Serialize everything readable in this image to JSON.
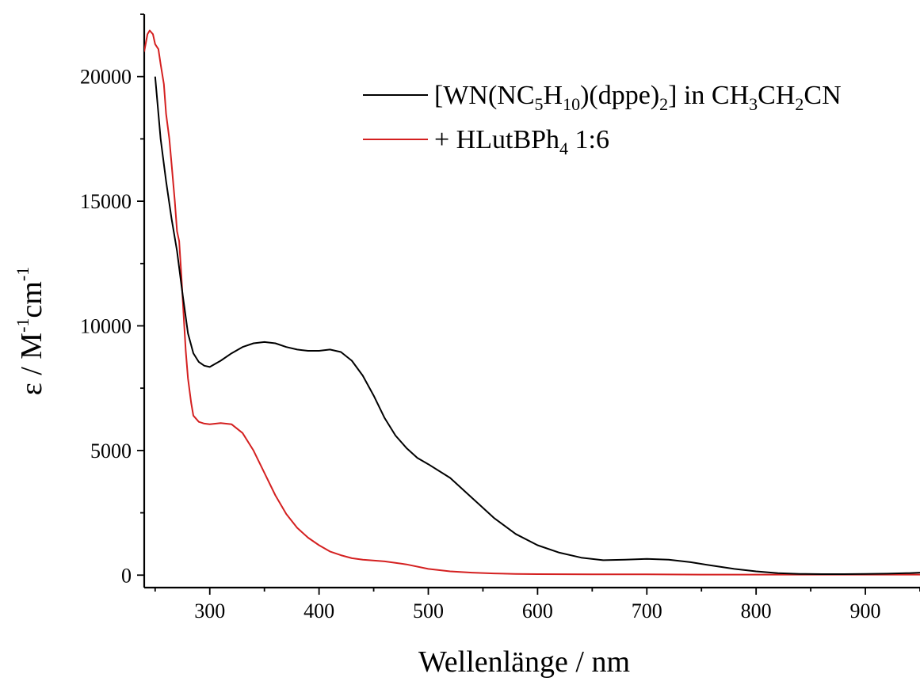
{
  "chart_data": {
    "type": "line",
    "xlabel": "Wellenlänge / nm",
    "ylabel": {
      "parts": [
        {
          "text": "ε / M",
          "role": "normal"
        },
        {
          "text": "-1",
          "role": "sup"
        },
        {
          "text": "cm",
          "role": "normal"
        },
        {
          "text": "-1",
          "role": "sup"
        }
      ]
    },
    "xlim": [
      240,
      950
    ],
    "ylim": [
      -500,
      22500
    ],
    "x_ticks": [
      300,
      400,
      500,
      600,
      700,
      800,
      900
    ],
    "y_ticks": [
      0,
      5000,
      10000,
      15000,
      20000
    ],
    "grid": false,
    "legend_position": "top-right",
    "series": [
      {
        "id": "complex",
        "color": "#000000",
        "legend_parts": [
          {
            "text": "[WN(NC",
            "role": "normal"
          },
          {
            "text": "5",
            "role": "sub"
          },
          {
            "text": "H",
            "role": "normal"
          },
          {
            "text": "10",
            "role": "sub"
          },
          {
            "text": ")(dppe)",
            "role": "normal"
          },
          {
            "text": "2",
            "role": "sub"
          },
          {
            "text": "] in CH",
            "role": "normal"
          },
          {
            "text": "3",
            "role": "sub"
          },
          {
            "text": "CH",
            "role": "normal"
          },
          {
            "text": "2",
            "role": "sub"
          },
          {
            "text": "CN",
            "role": "normal"
          }
        ],
        "x": [
          250,
          255,
          260,
          265,
          270,
          275,
          280,
          285,
          290,
          295,
          300,
          310,
          320,
          330,
          340,
          350,
          360,
          370,
          380,
          390,
          400,
          410,
          420,
          430,
          440,
          450,
          460,
          470,
          480,
          490,
          500,
          520,
          540,
          560,
          580,
          600,
          620,
          640,
          660,
          680,
          700,
          720,
          740,
          760,
          780,
          800,
          820,
          840,
          860,
          880,
          900,
          920,
          940,
          950
        ],
        "y": [
          20000,
          17500,
          15800,
          14300,
          13000,
          11300,
          9700,
          8900,
          8550,
          8400,
          8350,
          8600,
          8900,
          9150,
          9300,
          9350,
          9300,
          9150,
          9050,
          9000,
          9000,
          9050,
          8950,
          8600,
          8000,
          7200,
          6300,
          5600,
          5100,
          4700,
          4450,
          3900,
          3100,
          2300,
          1650,
          1200,
          900,
          700,
          600,
          620,
          650,
          620,
          520,
          380,
          250,
          150,
          80,
          50,
          40,
          40,
          50,
          60,
          80,
          100
        ]
      },
      {
        "id": "protonated",
        "color": "#d42020",
        "legend_parts": [
          {
            "text": "+ HLutBPh",
            "role": "normal"
          },
          {
            "text": "4",
            "role": "sub"
          },
          {
            "text": " 1:6",
            "role": "normal"
          }
        ],
        "x": [
          240,
          243,
          245,
          248,
          250,
          253,
          255,
          258,
          260,
          263,
          265,
          268,
          270,
          272,
          274,
          276,
          278,
          280,
          283,
          285,
          290,
          295,
          300,
          310,
          320,
          330,
          340,
          350,
          360,
          370,
          380,
          390,
          400,
          410,
          420,
          430,
          440,
          460,
          480,
          500,
          520,
          540,
          560,
          580,
          600,
          650,
          700,
          750,
          800,
          850,
          900,
          950
        ],
        "y": [
          21000,
          21700,
          21850,
          21700,
          21300,
          21100,
          20500,
          19700,
          18500,
          17500,
          16500,
          15000,
          13800,
          13400,
          12000,
          10500,
          9000,
          7900,
          6900,
          6400,
          6150,
          6080,
          6050,
          6100,
          6050,
          5700,
          5000,
          4100,
          3200,
          2450,
          1900,
          1500,
          1200,
          950,
          800,
          680,
          620,
          550,
          430,
          250,
          150,
          100,
          70,
          50,
          40,
          30,
          30,
          20,
          20,
          20,
          20,
          20
        ]
      }
    ]
  }
}
